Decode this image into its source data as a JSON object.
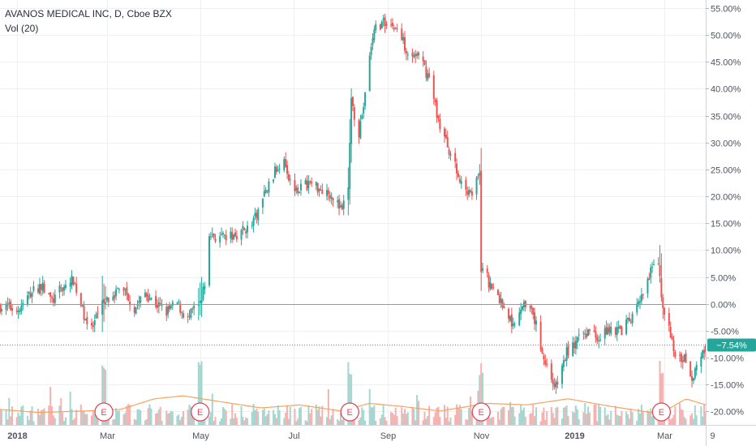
{
  "legend": {
    "symbol_line": "AVANOS MEDICAL INC, D, Cboe BZX",
    "volume_line": "Vol (20)"
  },
  "colors": {
    "up": "#26a69a",
    "down": "#ef5350",
    "up_volume": "#a5d6cf",
    "down_volume": "#f6b2b1",
    "volume_ma": "#f4a460",
    "grid": "#eef0f3",
    "zero_line": "#9598a1",
    "last_price": "#26a69a",
    "earnings": "#e0475d"
  },
  "chart_data": {
    "type": "candlestick",
    "title": "AVANOS MEDICAL INC, D, Cboe BZX",
    "y_unit": "%",
    "ylim": [
      -22.5,
      56.5
    ],
    "y_ticks": [
      {
        "value": 55,
        "label": "55.00%"
      },
      {
        "value": 50,
        "label": "50.00%"
      },
      {
        "value": 45,
        "label": "45.00%"
      },
      {
        "value": 40,
        "label": "40.00%"
      },
      {
        "value": 35,
        "label": "35.00%"
      },
      {
        "value": 30,
        "label": "30.00%"
      },
      {
        "value": 25,
        "label": "25.00%"
      },
      {
        "value": 20,
        "label": "20.00%"
      },
      {
        "value": 15,
        "label": "15.00%"
      },
      {
        "value": 10,
        "label": "10.00%"
      },
      {
        "value": 5,
        "label": "5.00%"
      },
      {
        "value": 0,
        "label": "0.00%"
      },
      {
        "value": -5,
        "label": "-5.00%"
      },
      {
        "value": -10,
        "label": "-10.00%"
      },
      {
        "value": -15,
        "label": "-15.00%"
      },
      {
        "value": -20,
        "label": "-20.00%"
      }
    ],
    "x_ticks": [
      {
        "date": "2018-01-01",
        "label": "2018"
      },
      {
        "date": "2018-03-01",
        "label": "Mar"
      },
      {
        "date": "2018-05-01",
        "label": "May"
      },
      {
        "date": "2018-07-01",
        "label": "Jul"
      },
      {
        "date": "2018-09-01",
        "label": "Sep"
      },
      {
        "date": "2018-11-01",
        "label": "Nov"
      },
      {
        "date": "2019-01-01",
        "label": "2019"
      },
      {
        "date": "2019-03-01",
        "label": "Mar"
      },
      {
        "date": "2019-04-01",
        "label": "9"
      }
    ],
    "xlim": [
      "2017-12-21",
      "2019-03-28"
    ],
    "last_value": -7.54,
    "last_value_label": "−7.54%",
    "earnings_marker_label": "E",
    "earnings_dates": [
      "2018-02-27",
      "2018-05-01",
      "2018-08-07",
      "2018-11-01",
      "2019-02-27"
    ],
    "price_path": [
      [
        "2017-12-21",
        -0.5
      ],
      [
        "2018-01-03",
        -1.0
      ],
      [
        "2018-01-10",
        2.0
      ],
      [
        "2018-01-17",
        3.5
      ],
      [
        "2018-01-24",
        0.5
      ],
      [
        "2018-01-31",
        3.0
      ],
      [
        "2018-02-07",
        4.5
      ],
      [
        "2018-02-14",
        -2.0
      ],
      [
        "2018-02-19",
        -5.0
      ],
      [
        "2018-02-26",
        0.0
      ],
      [
        "2018-03-05",
        2.0
      ],
      [
        "2018-03-12",
        3.0
      ],
      [
        "2018-03-19",
        -1.0
      ],
      [
        "2018-03-26",
        2.0
      ],
      [
        "2018-04-02",
        0.0
      ],
      [
        "2018-04-09",
        -1.5
      ],
      [
        "2018-04-16",
        0.0
      ],
      [
        "2018-04-23",
        -3.0
      ],
      [
        "2018-04-27",
        -1.0
      ],
      [
        "2018-05-01",
        -0.5
      ],
      [
        "2018-05-04",
        3.5
      ],
      [
        "2018-05-07",
        13.0
      ],
      [
        "2018-05-14",
        12.0
      ],
      [
        "2018-05-21",
        12.5
      ],
      [
        "2018-05-28",
        13.5
      ],
      [
        "2018-06-04",
        14.5
      ],
      [
        "2018-06-11",
        19.5
      ],
      [
        "2018-06-18",
        24.0
      ],
      [
        "2018-06-25",
        27.5
      ],
      [
        "2018-06-29",
        22.5
      ],
      [
        "2018-07-05",
        21.5
      ],
      [
        "2018-07-12",
        22.5
      ],
      [
        "2018-07-19",
        21.5
      ],
      [
        "2018-07-26",
        20.5
      ],
      [
        "2018-08-02",
        17.0
      ],
      [
        "2018-08-06",
        22.0
      ],
      [
        "2018-08-08",
        37.5
      ],
      [
        "2018-08-13",
        32.0
      ],
      [
        "2018-08-17",
        38.5
      ],
      [
        "2018-08-20",
        46.5
      ],
      [
        "2018-08-24",
        51.5
      ],
      [
        "2018-08-31",
        52.5
      ],
      [
        "2018-09-07",
        51.0
      ],
      [
        "2018-09-14",
        47.0
      ],
      [
        "2018-09-21",
        46.0
      ],
      [
        "2018-09-28",
        42.0
      ],
      [
        "2018-10-05",
        33.0
      ],
      [
        "2018-10-12",
        28.0
      ],
      [
        "2018-10-19",
        22.0
      ],
      [
        "2018-10-26",
        21.0
      ],
      [
        "2018-10-31",
        23.5
      ],
      [
        "2018-11-01",
        7.0
      ],
      [
        "2018-11-08",
        3.0
      ],
      [
        "2018-11-15",
        0.0
      ],
      [
        "2018-11-22",
        -4.0
      ],
      [
        "2018-11-29",
        1.0
      ],
      [
        "2018-12-06",
        -3.0
      ],
      [
        "2018-12-13",
        -11.0
      ],
      [
        "2018-12-20",
        -15.5
      ],
      [
        "2018-12-27",
        -9.0
      ],
      [
        "2019-01-03",
        -7.0
      ],
      [
        "2019-01-10",
        -5.0
      ],
      [
        "2019-01-17",
        -6.0
      ],
      [
        "2019-01-24",
        -4.5
      ],
      [
        "2019-01-31",
        -5.0
      ],
      [
        "2019-02-07",
        -3.0
      ],
      [
        "2019-02-14",
        1.0
      ],
      [
        "2019-02-21",
        6.5
      ],
      [
        "2019-02-25",
        8.0
      ],
      [
        "2019-02-27",
        0.5
      ],
      [
        "2019-03-04",
        -5.0
      ],
      [
        "2019-03-08",
        -9.5
      ],
      [
        "2019-03-14",
        -10.0
      ],
      [
        "2019-03-19",
        -13.5
      ],
      [
        "2019-03-26",
        -9.0
      ],
      [
        "2019-03-28",
        -7.54
      ]
    ],
    "volume_ma_path": [
      [
        "2017-12-21",
        0.07
      ],
      [
        "2018-01-15",
        0.05
      ],
      [
        "2018-02-15",
        0.06
      ],
      [
        "2018-03-10",
        0.07
      ],
      [
        "2018-04-01",
        0.14
      ],
      [
        "2018-04-20",
        0.16
      ],
      [
        "2018-05-15",
        0.12
      ],
      [
        "2018-06-10",
        0.08
      ],
      [
        "2018-07-05",
        0.1
      ],
      [
        "2018-08-01",
        0.06
      ],
      [
        "2018-08-20",
        0.11
      ],
      [
        "2018-09-10",
        0.09
      ],
      [
        "2018-10-05",
        0.06
      ],
      [
        "2018-11-05",
        0.11
      ],
      [
        "2018-12-01",
        0.1
      ],
      [
        "2018-12-28",
        0.14
      ],
      [
        "2019-01-25",
        0.09
      ],
      [
        "2019-02-20",
        0.05
      ],
      [
        "2019-03-05",
        0.08
      ],
      [
        "2019-03-15",
        0.14
      ],
      [
        "2019-03-28",
        0.1
      ]
    ]
  }
}
